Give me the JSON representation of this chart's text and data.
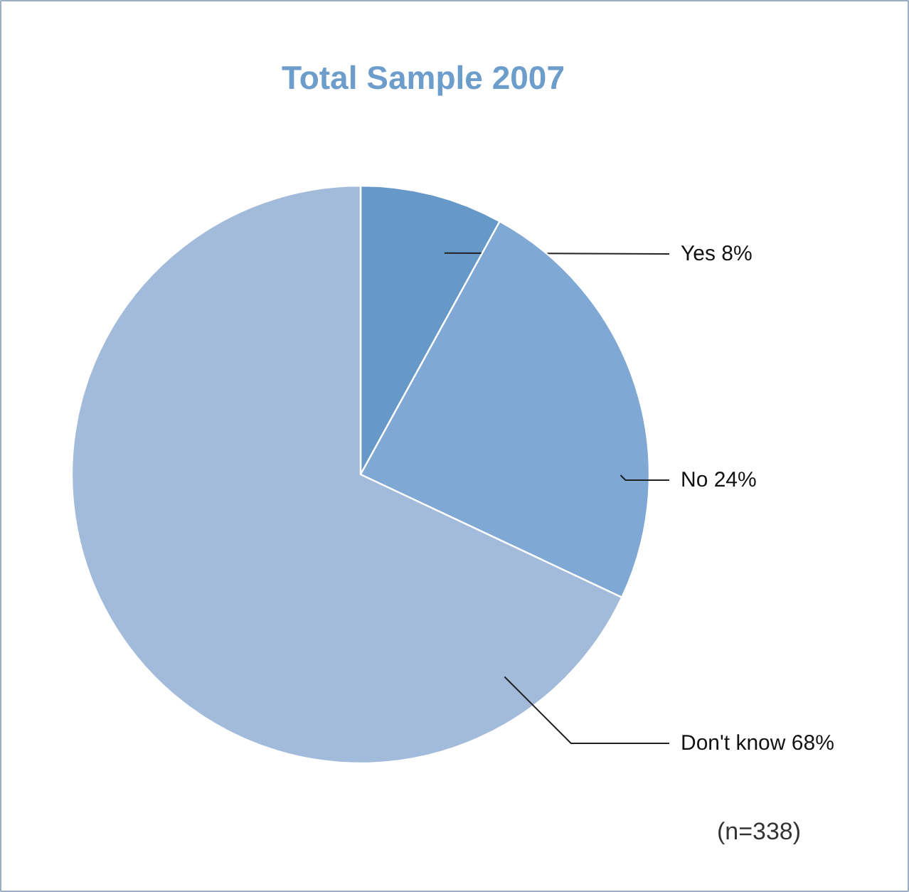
{
  "chart_data": {
    "type": "pie",
    "title": "Total Sample 2007",
    "categories": [
      "Yes",
      "No",
      "Don't know"
    ],
    "values": [
      8,
      24,
      68
    ],
    "value_labels": [
      "8%",
      "24%",
      "68%"
    ],
    "colors": [
      "#6699c8",
      "#7fa8d4",
      "#a2bbdb"
    ],
    "annotations": [
      "(n=338)"
    ]
  }
}
